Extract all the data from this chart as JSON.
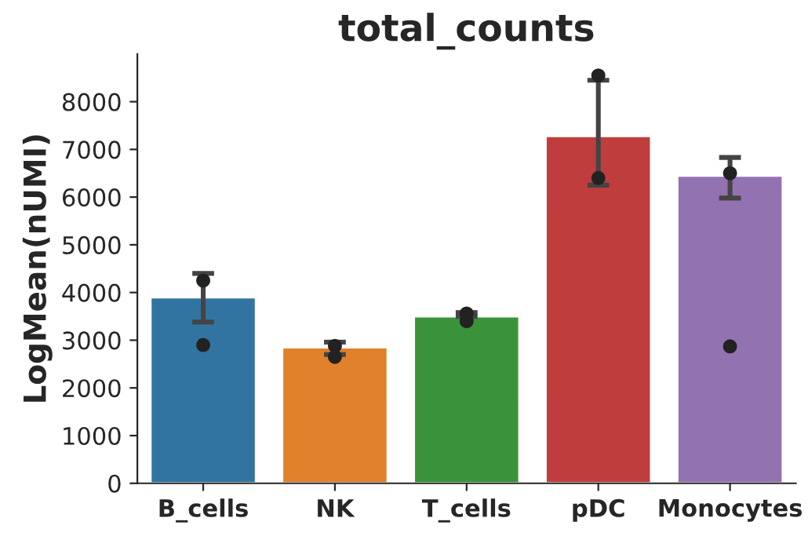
{
  "chart_data": {
    "type": "bar",
    "title": "total_counts",
    "ylabel": "LogMean(nUMI)",
    "categories": [
      "B_cells",
      "NK",
      "T_cells",
      "pDC",
      "Monocytes"
    ],
    "series": [
      {
        "values": [
          3900,
          2850,
          3500,
          7280,
          6450
        ],
        "colors": [
          "#3274a1",
          "#e1812c",
          "#3a923a",
          "#c03d3e",
          "#9372b2"
        ],
        "errors": [
          [
            3380,
            4400
          ],
          [
            2700,
            2960
          ],
          [
            3500,
            3580
          ],
          [
            6250,
            8450
          ],
          [
            5980,
            6830
          ]
        ]
      },
      {
        "type": "scatter",
        "color": "#222222",
        "x": [
          "B_cells",
          "B_cells",
          "NK",
          "NK",
          "T_cells",
          "T_cells",
          "pDC",
          "pDC",
          "Monocytes",
          "Monocytes"
        ],
        "values": [
          4250,
          2900,
          2880,
          2650,
          3560,
          3400,
          8550,
          6400,
          6500,
          2870
        ]
      }
    ],
    "ylim": [
      0,
      9000
    ],
    "yticks": [
      0,
      1000,
      2000,
      3000,
      4000,
      5000,
      6000,
      7000,
      8000
    ],
    "grid": false,
    "legend": false
  }
}
